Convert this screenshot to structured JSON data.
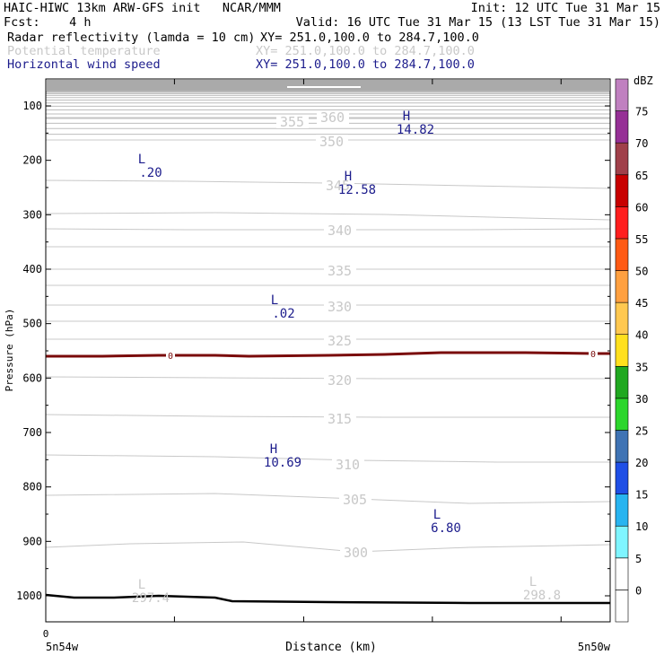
{
  "header": {
    "left1": "HAIC-HIWC 13km ARW-GFS init   NCAR/MMM",
    "right1": "Init: 12 UTC Tue 31 Mar 15",
    "left2": "Fcst:    4 h",
    "right2": "Valid: 16 UTC Tue 31 Mar 15 (13 LST Tue 31 Mar 15)",
    "fields": [
      {
        "name": "Radar reflectivity (lamda = 10 cm)",
        "xy": "XY= 251.0,100.0 to 284.7,100.0",
        "color": "#000000"
      },
      {
        "name": "Potential temperature",
        "xy": "XY= 251.0,100.0 to 284.7,100.0",
        "color": "#c8c8c8"
      },
      {
        "name": "Horizontal wind speed",
        "xy": "XY= 251.0,100.0 to 284.7,100.0",
        "color": "#1c1c8c"
      }
    ]
  },
  "chart_data": {
    "type": "contour-cross-section",
    "ylabel": "Pressure (hPa)",
    "xlabel": "Distance (km)",
    "x_left_label": "5n54w",
    "x_right_label": "5n50w",
    "x_start_tick": "0",
    "yticks": [
      100,
      200,
      300,
      400,
      500,
      600,
      700,
      800,
      900,
      1000
    ],
    "ylim": [
      1052,
      40
    ],
    "theta_contours": [
      {
        "value": 355,
        "label_x": 0.41
      },
      {
        "value": 360,
        "label_x": 0.48
      },
      {
        "value": 350,
        "label_x": 0.48
      },
      {
        "value": 345,
        "label_x": 0.47
      },
      {
        "value": 340,
        "label_x": 0.5
      },
      {
        "value": 335,
        "label_x": 0.5
      },
      {
        "value": 330,
        "label_x": 0.5
      },
      {
        "value": 325,
        "label_x": 0.5
      },
      {
        "value": 320,
        "label_x": 0.5
      },
      {
        "value": 315,
        "label_x": 0.5
      },
      {
        "value": 310,
        "label_x": 0.52
      },
      {
        "value": 305,
        "label_x": 0.53
      },
      {
        "value": 300,
        "label_x": 0.53
      }
    ],
    "wind_extrema": [
      {
        "type": "H",
        "value": "14.82"
      },
      {
        "type": "L",
        "value": ".20"
      },
      {
        "type": "H",
        "value": "12.58"
      },
      {
        "type": "L",
        "value": ".02"
      },
      {
        "type": "H",
        "value": "10.69"
      },
      {
        "type": "L",
        "value": "6.80"
      }
    ],
    "theta_extrema": [
      {
        "type": "L",
        "value": "297.4"
      },
      {
        "type": "L",
        "value": "298.8"
      }
    ],
    "freezing_label": "0",
    "colorbar": {
      "unit": "dBZ",
      "levels": [
        0,
        5,
        10,
        15,
        20,
        25,
        30,
        35,
        40,
        45,
        50,
        55,
        60,
        65,
        70,
        75
      ],
      "colors": [
        "#ffffff",
        "#7ff5ff",
        "#28b4f0",
        "#1f4fe6",
        "#3f73b4",
        "#2cd62c",
        "#20a820",
        "#ffe01e",
        "#ffc850",
        "#ffa040",
        "#ff5a14",
        "#ff1e1e",
        "#c80000",
        "#a0404a",
        "#963096",
        "#c080c0"
      ]
    }
  }
}
